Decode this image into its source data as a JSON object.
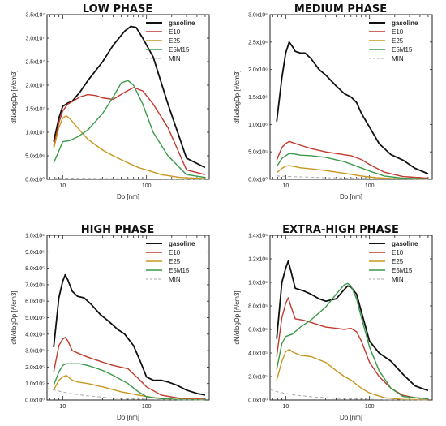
{
  "colors": {
    "gasoline": "#111111",
    "E10": "#c0392b",
    "E25": "#c8961f",
    "E5M15": "#3a9a4a",
    "MIN": "#aaaaaa"
  },
  "chart_data": [
    {
      "type": "line",
      "title": "LOW PHASE",
      "xlabel": "Dp [nm]",
      "ylabel": "dN/dlogDp [#/cm3]",
      "x_scale": "log",
      "xlim": [
        6.5,
        560
      ],
      "ylim": [
        0,
        35000000
      ],
      "yticks": [
        0,
        5000000,
        10000000,
        15000000,
        20000000,
        25000000,
        30000000,
        35000000
      ],
      "ytick_labels": [
        "0.0x10⁰",
        "5.0x10⁶",
        "1.0x10⁷",
        "1.5x10⁷",
        "2.0x10⁷",
        "2.5x10⁷",
        "3.0x10⁷",
        "3.5x10⁷"
      ],
      "xtick_labels": [
        "10",
        "100"
      ],
      "legend": "top-right",
      "grid": false,
      "series": [
        {
          "name": "gasoline",
          "x": [
            7.8,
            9,
            10,
            11.5,
            13,
            16,
            20,
            30,
            40,
            55,
            65,
            75,
            90,
            120,
            180,
            300,
            500
          ],
          "y": [
            8000000,
            13000000,
            15500000,
            16200000,
            16600000,
            18500000,
            21000000,
            25000000,
            28500000,
            31500000,
            32500000,
            32300000,
            30000000,
            26000000,
            16000000,
            4500000,
            2500000
          ]
        },
        {
          "name": "E10",
          "x": [
            7.8,
            9,
            10,
            11.5,
            13,
            16,
            20,
            25,
            30,
            40,
            55,
            70,
            90,
            120,
            180,
            300,
            500
          ],
          "y": [
            7000000,
            12000000,
            14500000,
            16000000,
            16500000,
            17500000,
            18000000,
            17800000,
            17300000,
            17000000,
            18500000,
            19500000,
            18800000,
            16000000,
            11000000,
            2000000,
            1000000
          ]
        },
        {
          "name": "E25",
          "x": [
            7.8,
            9,
            10,
            11,
            12,
            15,
            20,
            30,
            40,
            60,
            80,
            100,
            150,
            250,
            500
          ],
          "y": [
            6500000,
            11000000,
            13000000,
            13500000,
            13000000,
            11000000,
            8500000,
            6200000,
            5000000,
            3500000,
            2500000,
            2000000,
            1000000,
            400000,
            150000
          ]
        },
        {
          "name": "E5M15",
          "x": [
            7.8,
            9,
            10,
            12,
            15,
            20,
            30,
            40,
            50,
            60,
            70,
            90,
            120,
            180,
            300,
            500
          ],
          "y": [
            3500000,
            6000000,
            8000000,
            8200000,
            9000000,
            10500000,
            14000000,
            17500000,
            20500000,
            21000000,
            20000000,
            16000000,
            10000000,
            5000000,
            1000000,
            400000
          ]
        },
        {
          "name": "MIN",
          "x": [
            7.8,
            15,
            30,
            60,
            120,
            250,
            500
          ],
          "y": [
            300000,
            250000,
            180000,
            120000,
            80000,
            40000,
            20000
          ]
        }
      ]
    },
    {
      "type": "line",
      "title": "MEDIUM PHASE",
      "xlabel": "Dp [nm]",
      "ylabel": "dN/dlogDp [#/cm3]",
      "x_scale": "log",
      "xlim": [
        6.5,
        560
      ],
      "ylim": [
        0,
        3000000
      ],
      "yticks": [
        0,
        500000,
        1000000,
        1500000,
        2000000,
        2500000,
        3000000
      ],
      "ytick_labels": [
        "0.0x10⁰",
        "5.0x10⁵",
        "1.0x10⁶",
        "1.5x10⁶",
        "2.0x10⁶",
        "2.5x10⁶",
        "3.0x10⁶"
      ],
      "xtick_labels": [
        "10",
        "100"
      ],
      "legend": "top-right",
      "grid": false,
      "series": [
        {
          "name": "gasoline",
          "x": [
            7.8,
            9,
            10,
            11,
            12,
            13,
            15,
            17,
            20,
            25,
            30,
            40,
            50,
            60,
            70,
            80,
            100,
            130,
            180,
            250,
            350,
            500
          ],
          "y": [
            1050000,
            1850000,
            2300000,
            2500000,
            2420000,
            2330000,
            2300000,
            2300000,
            2200000,
            2000000,
            1900000,
            1700000,
            1560000,
            1500000,
            1400000,
            1200000,
            950000,
            650000,
            450000,
            350000,
            200000,
            100000
          ]
        },
        {
          "name": "E10",
          "x": [
            7.8,
            9,
            10,
            11,
            12,
            15,
            20,
            30,
            40,
            60,
            80,
            100,
            150,
            250,
            500
          ],
          "y": [
            350000,
            580000,
            650000,
            690000,
            670000,
            620000,
            560000,
            500000,
            470000,
            430000,
            360000,
            270000,
            130000,
            50000,
            20000
          ]
        },
        {
          "name": "E25",
          "x": [
            7.8,
            9,
            10,
            11,
            13,
            15,
            20,
            30,
            50,
            80,
            120,
            200,
            500
          ],
          "y": [
            120000,
            200000,
            240000,
            250000,
            230000,
            210000,
            190000,
            160000,
            110000,
            60000,
            30000,
            12000,
            5000
          ]
        },
        {
          "name": "E5M15",
          "x": [
            7.8,
            9,
            10,
            11,
            13,
            15,
            20,
            30,
            50,
            70,
            100,
            150,
            250,
            500
          ],
          "y": [
            230000,
            380000,
            430000,
            470000,
            460000,
            440000,
            430000,
            400000,
            320000,
            240000,
            150000,
            60000,
            20000,
            8000
          ]
        },
        {
          "name": "MIN",
          "x": [
            7.8,
            15,
            30,
            60,
            120,
            250,
            500
          ],
          "y": [
            60000,
            45000,
            30000,
            20000,
            12000,
            6000,
            3000
          ]
        }
      ]
    },
    {
      "type": "line",
      "title": "HIGH PHASE",
      "xlabel": "Dp [nm]",
      "ylabel": "dN/dlogDp [#/cm3]",
      "x_scale": "log",
      "xlim": [
        6.5,
        560
      ],
      "ylim": [
        0,
        1000000
      ],
      "yticks": [
        0,
        100000,
        200000,
        300000,
        400000,
        500000,
        600000,
        700000,
        800000,
        900000,
        1000000
      ],
      "ytick_labels": [
        "0.0x10⁰",
        "1.0x10⁵",
        "2.0x10⁵",
        "3.0x10⁵",
        "4.0x10⁵",
        "5.0x10⁵",
        "6.0x10⁵",
        "7.0x10⁵",
        "8.0x10⁵",
        "9.0x10⁵",
        "1.0x10⁶"
      ],
      "xtick_labels": [
        "10",
        "100"
      ],
      "legend": "top-right",
      "grid": false,
      "series": [
        {
          "name": "gasoline",
          "x": [
            7.8,
            9,
            10,
            10.7,
            11.5,
            13,
            15,
            18,
            22,
            28,
            35,
            45,
            55,
            70,
            85,
            100,
            120,
            150,
            180,
            230,
            300,
            400,
            500
          ],
          "y": [
            320000,
            620000,
            720000,
            760000,
            730000,
            660000,
            630000,
            620000,
            580000,
            520000,
            480000,
            430000,
            400000,
            330000,
            230000,
            140000,
            120000,
            120000,
            110000,
            90000,
            60000,
            40000,
            30000
          ]
        },
        {
          "name": "E10",
          "x": [
            7.8,
            9,
            10,
            10.7,
            11.5,
            13,
            16,
            20,
            30,
            40,
            60,
            80,
            100,
            150,
            250,
            500
          ],
          "y": [
            170000,
            330000,
            370000,
            380000,
            360000,
            300000,
            280000,
            260000,
            230000,
            210000,
            190000,
            130000,
            80000,
            30000,
            10000,
            5000
          ]
        },
        {
          "name": "E25",
          "x": [
            7.8,
            9,
            10,
            11,
            13,
            15,
            20,
            30,
            50,
            80,
            120,
            200,
            500
          ],
          "y": [
            60000,
            120000,
            140000,
            150000,
            120000,
            110000,
            100000,
            80000,
            50000,
            30000,
            15000,
            5000,
            2000
          ]
        },
        {
          "name": "E5M15",
          "x": [
            7.8,
            9,
            10,
            11,
            13,
            16,
            20,
            30,
            40,
            60,
            80,
            100,
            150,
            250,
            500
          ],
          "y": [
            90000,
            170000,
            210000,
            220000,
            220000,
            220000,
            210000,
            180000,
            150000,
            100000,
            50000,
            20000,
            8000,
            3000,
            1000
          ]
        },
        {
          "name": "MIN",
          "x": [
            6.5,
            8,
            12,
            20,
            40,
            80,
            160,
            500
          ],
          "y": [
            70000,
            60000,
            40000,
            25000,
            12000,
            5000,
            2000,
            500
          ]
        }
      ]
    },
    {
      "type": "line",
      "title": "EXTRA-HIGH PHASE",
      "xlabel": "Dp [nm]",
      "ylabel": "dN/dlogDp [#/cm3]",
      "x_scale": "log",
      "xlim": [
        6.5,
        560
      ],
      "ylim": [
        0,
        1400000
      ],
      "yticks": [
        0,
        200000,
        400000,
        600000,
        800000,
        1000000,
        1200000,
        1400000
      ],
      "ytick_labels": [
        "0.0x10⁰",
        "2.0x10⁵",
        "4.0x10⁵",
        "6.0x10⁵",
        "8.0x10⁵",
        "1.0x10⁶",
        "1.2x10⁶",
        "1.4x10⁶"
      ],
      "xtick_labels": [
        "10",
        "100"
      ],
      "legend": "top-right",
      "grid": false,
      "series": [
        {
          "name": "gasoline",
          "x": [
            7.8,
            9,
            10,
            10.7,
            11.5,
            13,
            16,
            20,
            25,
            30,
            40,
            50,
            55,
            60,
            70,
            80,
            100,
            130,
            180,
            250,
            350,
            500
          ],
          "y": [
            520000,
            1000000,
            1120000,
            1180000,
            1100000,
            950000,
            930000,
            900000,
            860000,
            840000,
            860000,
            940000,
            970000,
            960000,
            900000,
            750000,
            500000,
            400000,
            330000,
            220000,
            120000,
            80000
          ]
        },
        {
          "name": "E10",
          "x": [
            7.8,
            9,
            10,
            10.7,
            11.5,
            13,
            16,
            20,
            30,
            40,
            50,
            60,
            70,
            80,
            100,
            130,
            180,
            250,
            350,
            500
          ],
          "y": [
            370000,
            700000,
            820000,
            870000,
            800000,
            690000,
            680000,
            660000,
            620000,
            610000,
            600000,
            610000,
            580000,
            500000,
            320000,
            200000,
            100000,
            40000,
            20000,
            10000
          ]
        },
        {
          "name": "E25",
          "x": [
            7.8,
            9,
            10,
            11,
            12,
            15,
            20,
            30,
            40,
            50,
            60,
            80,
            100,
            150,
            250,
            500
          ],
          "y": [
            170000,
            330000,
            410000,
            430000,
            410000,
            380000,
            370000,
            320000,
            250000,
            200000,
            170000,
            100000,
            60000,
            20000,
            5000,
            2000
          ]
        },
        {
          "name": "E5M15",
          "x": [
            7.8,
            9,
            10,
            12,
            15,
            20,
            30,
            40,
            50,
            55,
            60,
            70,
            80,
            100,
            130,
            180,
            250,
            500
          ],
          "y": [
            260000,
            480000,
            540000,
            560000,
            620000,
            680000,
            790000,
            900000,
            980000,
            990000,
            970000,
            860000,
            700000,
            450000,
            250000,
            100000,
            30000,
            10000
          ]
        },
        {
          "name": "MIN",
          "x": [
            6.5,
            8,
            12,
            20,
            40,
            80,
            160,
            500
          ],
          "y": [
            90000,
            70000,
            45000,
            28000,
            14000,
            6000,
            2500,
            600
          ]
        }
      ]
    }
  ]
}
